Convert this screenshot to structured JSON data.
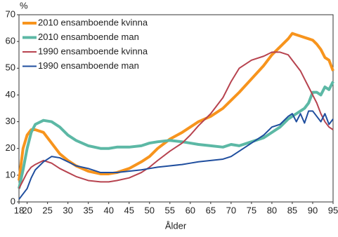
{
  "chart_data": {
    "type": "line",
    "y_label": "%",
    "x_label": "Ålder",
    "x": [
      18,
      19,
      20,
      21,
      22,
      24,
      26,
      28,
      30,
      32,
      35,
      38,
      40,
      42,
      45,
      48,
      50,
      52,
      55,
      58,
      60,
      62,
      65,
      68,
      70,
      72,
      75,
      78,
      80,
      82,
      84,
      85,
      86,
      87,
      88,
      89,
      90,
      91,
      92,
      93,
      94,
      95
    ],
    "xlim": [
      18,
      95
    ],
    "xticks": [
      18,
      20,
      25,
      30,
      35,
      40,
      45,
      50,
      55,
      60,
      65,
      70,
      75,
      80,
      85,
      90,
      95
    ],
    "ylim": [
      0,
      70
    ],
    "yticks": [
      0,
      10,
      20,
      30,
      40,
      50,
      60,
      70
    ],
    "grid": false,
    "legend": "upper left",
    "series": [
      {
        "name": "2010 ensamboende kvinna",
        "color": "#f7941d",
        "values": [
          8,
          20,
          25,
          27,
          27,
          26,
          22,
          18,
          15.5,
          13.5,
          11.5,
          10.5,
          10.5,
          11,
          12.5,
          15,
          17,
          20,
          23.5,
          26,
          28,
          30,
          32,
          35,
          38,
          41,
          46,
          51,
          55,
          58,
          61,
          63,
          62.5,
          62,
          61.5,
          61,
          60.5,
          59,
          57,
          54,
          53,
          49
        ]
      },
      {
        "name": "2010 ensamboende man",
        "color": "#5cb8a5",
        "values": [
          5,
          12,
          20,
          26,
          29,
          30.5,
          30,
          28,
          25,
          23,
          21,
          20,
          20,
          20.5,
          20.5,
          21,
          22,
          22.5,
          23,
          22.5,
          22,
          21.5,
          21,
          20.5,
          21.5,
          21,
          22.5,
          24,
          26,
          28,
          31,
          32,
          33,
          34,
          35,
          37,
          41,
          41,
          40,
          43,
          42,
          45
        ]
      },
      {
        "name": "1990 ensamboende kvinna",
        "color": "#b7434f",
        "values": [
          5,
          8,
          11,
          13,
          14,
          15.5,
          14.5,
          12.5,
          11,
          9.5,
          8,
          7.5,
          7.5,
          8,
          9,
          11,
          13,
          15.5,
          19,
          22,
          25,
          28.5,
          33,
          39,
          45,
          50,
          53,
          54.5,
          56,
          56,
          55,
          53,
          51,
          49,
          46,
          43,
          40,
          37,
          33,
          30,
          28,
          27
        ]
      },
      {
        "name": "1990 ensamboende man",
        "color": "#1f4e9e",
        "values": [
          1,
          3,
          5,
          9,
          12,
          15,
          17,
          16.5,
          15,
          13.5,
          12.5,
          11,
          11,
          11,
          11.5,
          12,
          12.5,
          13,
          13.5,
          14,
          14.5,
          15,
          15.5,
          16,
          17,
          19,
          22,
          25,
          28,
          29,
          32,
          33,
          30,
          33,
          29.5,
          34,
          34,
          32,
          30,
          33,
          29,
          31
        ]
      }
    ]
  }
}
